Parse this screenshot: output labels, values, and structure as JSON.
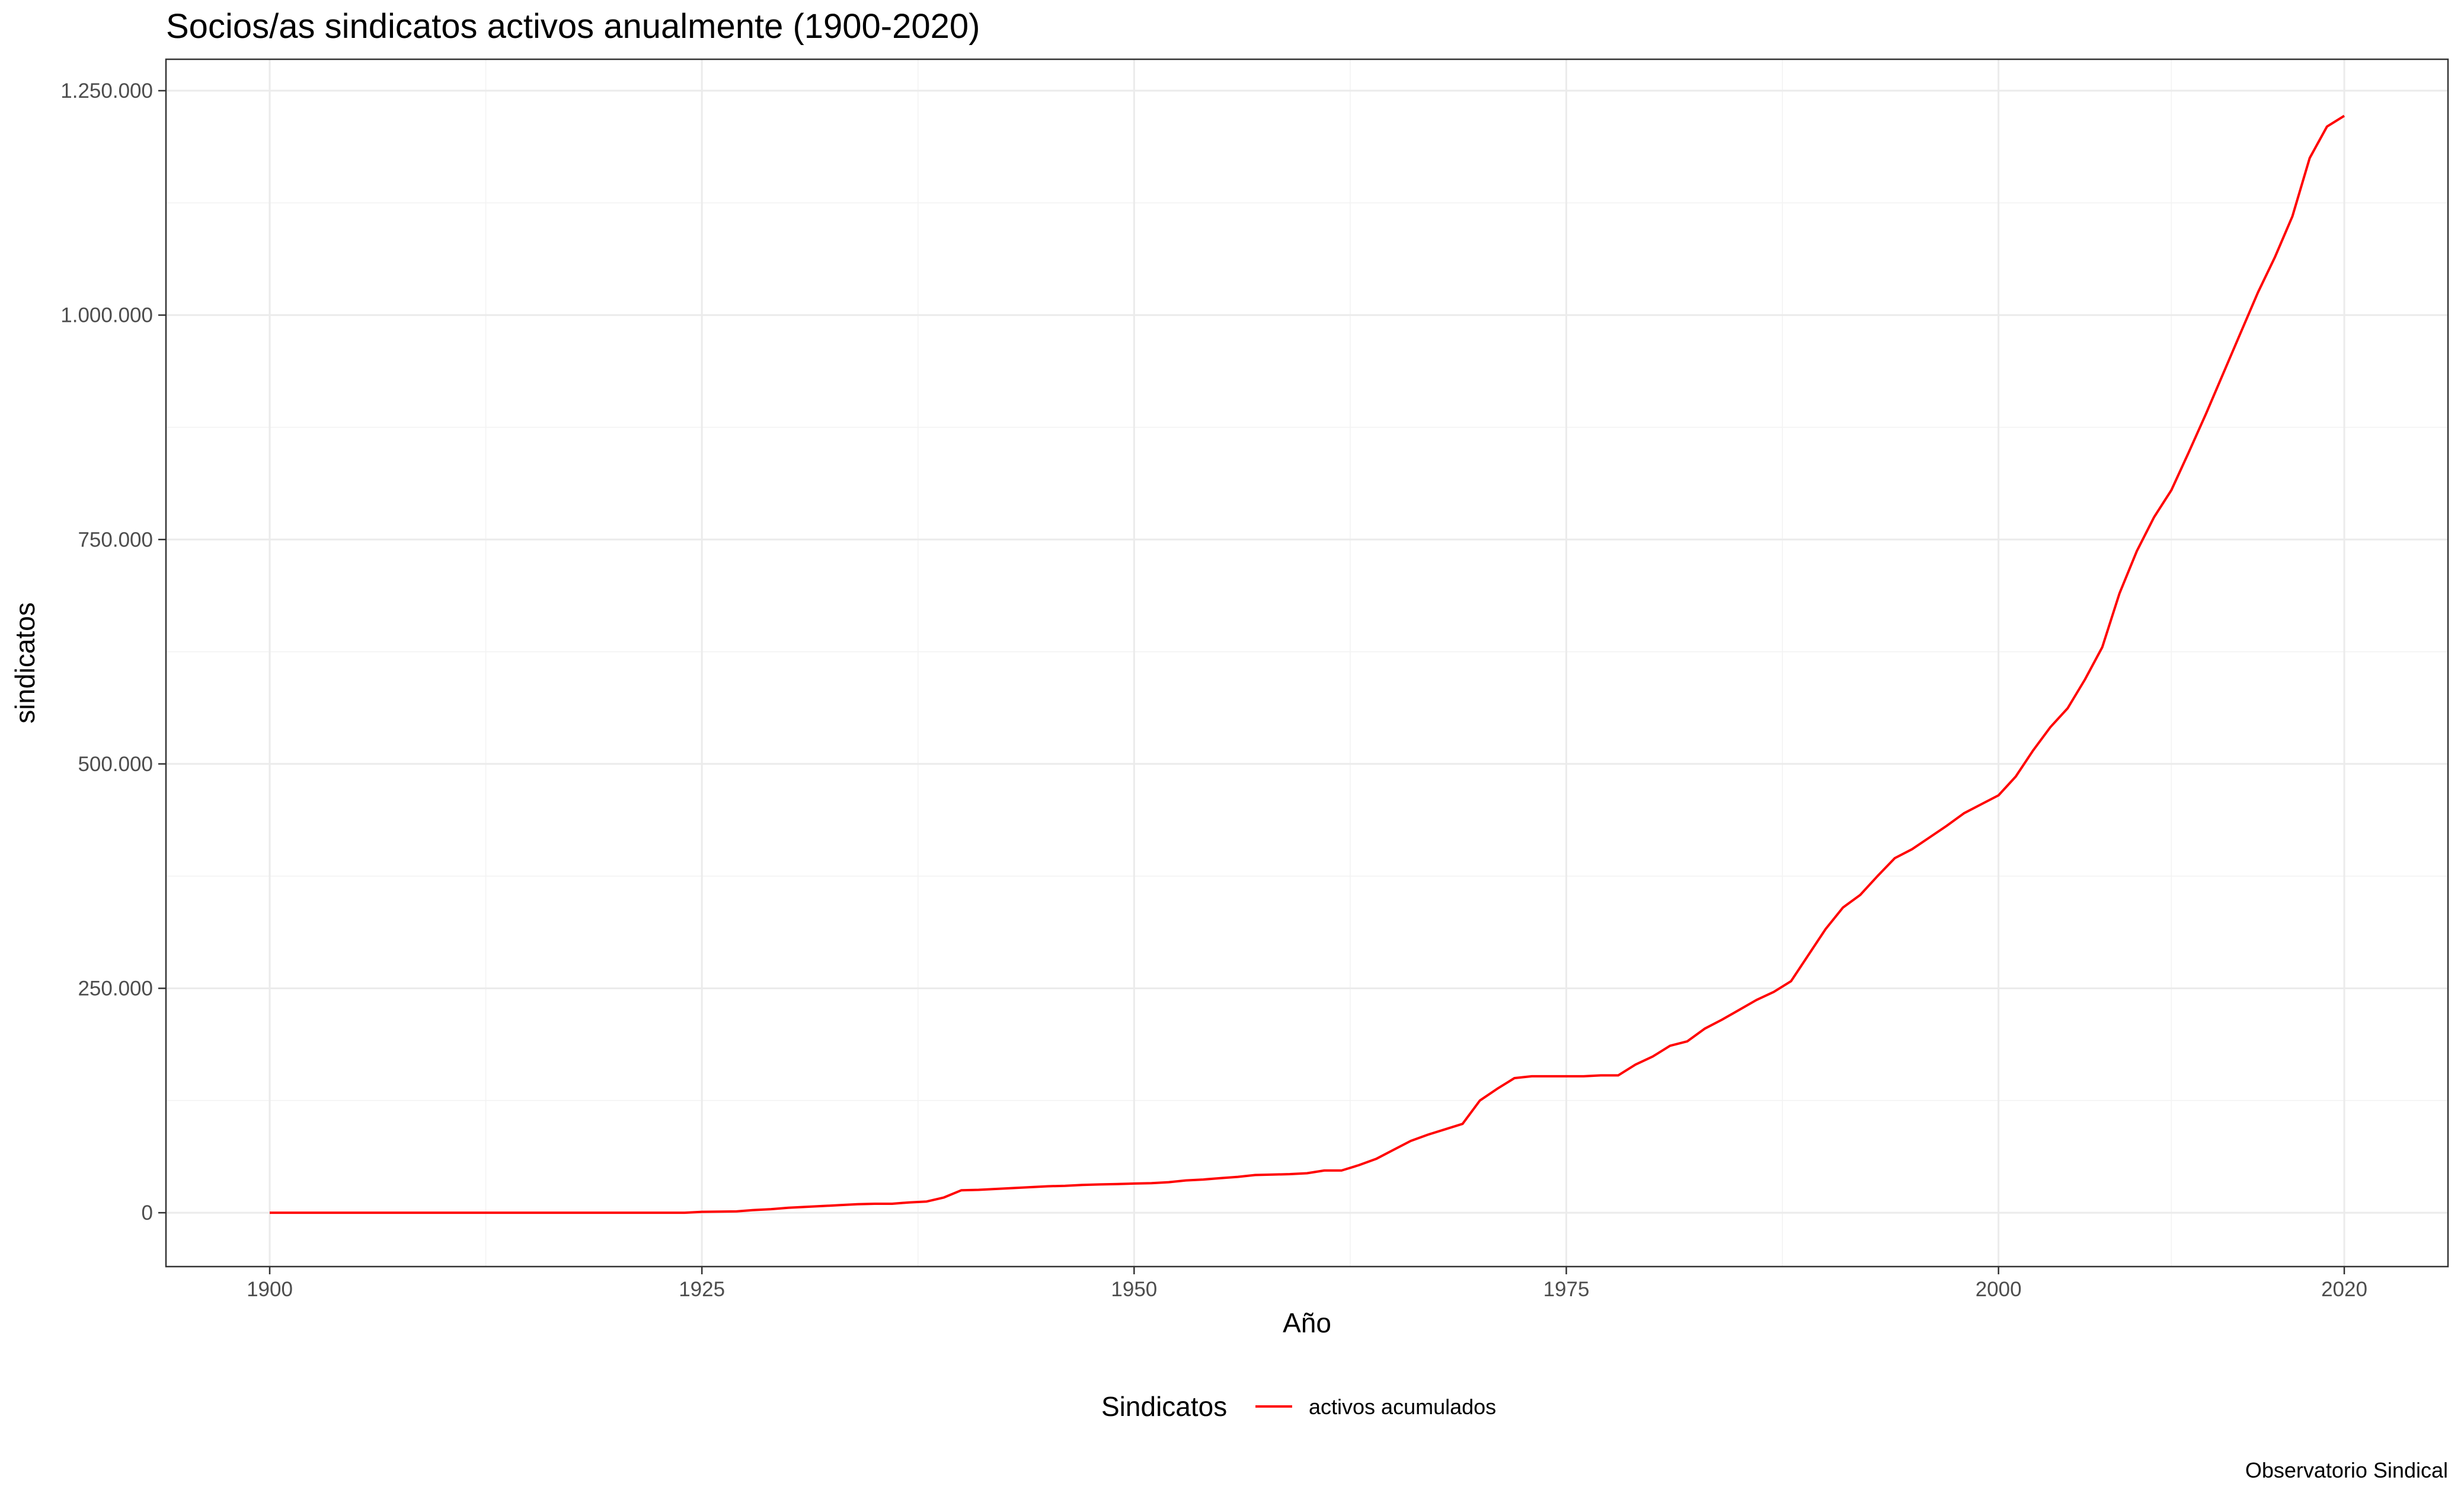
{
  "chart_data": {
    "type": "line",
    "title": "Socios/as sindicatos activos anualmente (1900-2020)",
    "xlabel": "Año",
    "ylabel": "sindicatos",
    "caption": "Observatorio Sindical",
    "xlim": [
      1894,
      2026
    ],
    "ylim": [
      -60000,
      1285000
    ],
    "x_major_ticks": [
      1900,
      1925,
      1950,
      1975,
      2000,
      2020
    ],
    "x_minor_ticks": [
      1912.5,
      1937.5,
      1962.5,
      1987.5,
      2010
    ],
    "y_major_ticks": [
      0,
      250000,
      500000,
      750000,
      1000000,
      1250000
    ],
    "y_minor_ticks": [
      125000,
      375000,
      625000,
      875000,
      1125000
    ],
    "x_tick_labels": [
      "1900",
      "1925",
      "1950",
      "1975",
      "2000",
      "2020"
    ],
    "y_tick_labels": [
      "0",
      "250.000",
      "500.000",
      "750.000",
      "1.000.000",
      "1.250.000"
    ],
    "grid": true,
    "legend": {
      "title": "Sindicatos",
      "position": "bottom"
    },
    "series": [
      {
        "name": "activos acumulados",
        "color": "#ff0000",
        "x": [
          1900,
          1905,
          1910,
          1915,
          1920,
          1924,
          1925,
          1927,
          1928,
          1929,
          1930,
          1931,
          1932,
          1933,
          1934,
          1935,
          1936,
          1937,
          1938,
          1939,
          1940,
          1941,
          1942,
          1943,
          1944,
          1945,
          1946,
          1947,
          1948,
          1949,
          1950,
          1951,
          1952,
          1953,
          1954,
          1955,
          1956,
          1957,
          1958,
          1959,
          1960,
          1961,
          1962,
          1963,
          1964,
          1965,
          1966,
          1967,
          1968,
          1969,
          1970,
          1971,
          1972,
          1973,
          1974,
          1975,
          1976,
          1977,
          1978,
          1979,
          1980,
          1981,
          1982,
          1983,
          1984,
          1985,
          1986,
          1987,
          1988,
          1989,
          1990,
          1991,
          1992,
          1993,
          1994,
          1995,
          1996,
          1997,
          1998,
          1999,
          2000,
          2001,
          2002,
          2003,
          2004,
          2005,
          2006,
          2007,
          2008,
          2009,
          2010,
          2011,
          2012,
          2013,
          2014,
          2015,
          2016,
          2017,
          2018,
          2019,
          2020
        ],
        "values": [
          0,
          0,
          0,
          0,
          0,
          0,
          1000,
          1500,
          3000,
          4000,
          5500,
          6500,
          7500,
          8500,
          9500,
          10000,
          10000,
          11500,
          12500,
          17000,
          25000,
          25500,
          26500,
          27500,
          28500,
          29500,
          30000,
          31000,
          31500,
          32000,
          32500,
          33000,
          34000,
          36000,
          37000,
          38500,
          40000,
          42000,
          42500,
          43000,
          44000,
          47000,
          47000,
          53000,
          60000,
          70000,
          80000,
          87000,
          93000,
          99000,
          125000,
          138000,
          150000,
          152000,
          152000,
          152000,
          152000,
          153000,
          153000,
          165000,
          174000,
          186000,
          191000,
          205000,
          215000,
          226000,
          237000,
          246000,
          258000,
          287000,
          316000,
          340000,
          354000,
          375000,
          395000,
          405000,
          418000,
          431000,
          445000,
          455000,
          465000,
          486000,
          515000,
          541000,
          562000,
          594000,
          630000,
          690000,
          737000,
          775000,
          805000,
          847000,
          890000,
          935000,
          980000,
          1025000,
          1065000,
          1110000,
          1175000,
          1210000,
          1222000
        ]
      }
    ]
  }
}
